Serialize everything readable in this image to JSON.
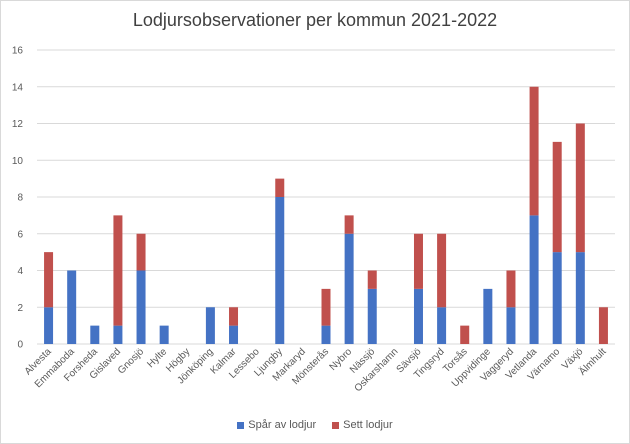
{
  "chart_data": {
    "type": "bar",
    "stacked": true,
    "title": "Lodjursobservationer per kommun 2021-2022",
    "ylim": [
      0,
      16
    ],
    "yticks": [
      0,
      2,
      4,
      6,
      8,
      10,
      12,
      14,
      16
    ],
    "grid": true,
    "legend_position": "bottom",
    "categories": [
      "Alvesta",
      "Emmaboda",
      "Forsheda",
      "Gislaved",
      "Gnosjö",
      "Hylte",
      "Högby",
      "Jönköping",
      "Kalmar",
      "Lessebo",
      "Ljungby",
      "Markaryd",
      "Mönsterås",
      "Nybro",
      "Nässjö",
      "Oskarshamn",
      "Sävsjö",
      "Tingsryd",
      "Torsås",
      "Uppvidinge",
      "Vaggeryd",
      "Vetlanda",
      "Värnamo",
      "Växjö",
      "Älmhult"
    ],
    "series": [
      {
        "name": "Spår av lodjur",
        "color": "#4472c4",
        "values": [
          2,
          4,
          1,
          1,
          4,
          1,
          0,
          2,
          1,
          0,
          8,
          0,
          1,
          6,
          3,
          0,
          3,
          2,
          0,
          3,
          2,
          7,
          5,
          5,
          0
        ]
      },
      {
        "name": "Sett lodjur",
        "color": "#c0504d",
        "values": [
          3,
          0,
          0,
          6,
          2,
          0,
          0,
          0,
          1,
          0,
          1,
          0,
          2,
          1,
          1,
          0,
          3,
          4,
          1,
          0,
          2,
          7,
          6,
          7,
          2
        ]
      }
    ]
  }
}
